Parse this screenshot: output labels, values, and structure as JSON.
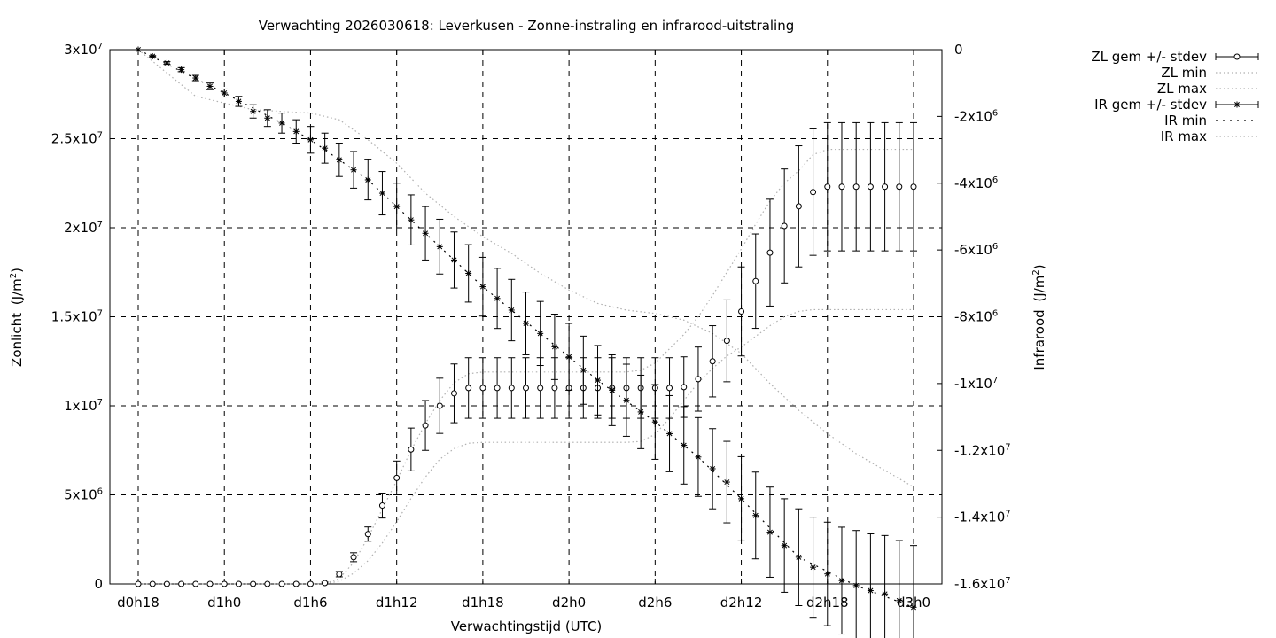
{
  "chart_data": {
    "type": "line",
    "title": "Verwachting 2026030618: Leverkusen - Zonne-instraling en infrarood-uitstraling",
    "xlabel": "Verwachtingstijd (UTC)",
    "ylabel_main": "Zonlicht",
    "ylabel_unit": "(J/m",
    "ylabel_sup": "2",
    "ylabel_close": ")",
    "y2label_main": "Infrarood",
    "y2label_unit": "(J/m",
    "y2label_sup": "2",
    "y2label_close": ")",
    "x_range_hours": [
      24,
      78
    ],
    "x_ticks": [
      {
        "h": 24,
        "label": "d0h18"
      },
      {
        "h": 30,
        "label": "d1h0"
      },
      {
        "h": 36,
        "label": "d1h6"
      },
      {
        "h": 42,
        "label": "d1h12"
      },
      {
        "h": 48,
        "label": "d1h18"
      },
      {
        "h": 54,
        "label": "d2h0"
      },
      {
        "h": 60,
        "label": "d2h6"
      },
      {
        "h": 66,
        "label": "d2h12"
      },
      {
        "h": 72,
        "label": "d2h18"
      },
      {
        "h": 78,
        "label": "d3h0"
      }
    ],
    "ylim": [
      0,
      30000000
    ],
    "y_ticks": [
      {
        "v": 0,
        "base": "0",
        "exp": ""
      },
      {
        "v": 5000000,
        "base": "5x10",
        "exp": "6"
      },
      {
        "v": 10000000,
        "base": "1x10",
        "exp": "7"
      },
      {
        "v": 15000000,
        "base": "1.5x10",
        "exp": "7"
      },
      {
        "v": 20000000,
        "base": "2x10",
        "exp": "7"
      },
      {
        "v": 25000000,
        "base": "2.5x10",
        "exp": "7"
      },
      {
        "v": 30000000,
        "base": "3x10",
        "exp": "7"
      }
    ],
    "y2lim": [
      -16000000,
      0
    ],
    "y2_ticks": [
      {
        "v": 0,
        "base": "0",
        "exp": ""
      },
      {
        "v": -2000000,
        "base": "-2x10",
        "exp": "6"
      },
      {
        "v": -4000000,
        "base": "-4x10",
        "exp": "6"
      },
      {
        "v": -6000000,
        "base": "-6x10",
        "exp": "6"
      },
      {
        "v": -8000000,
        "base": "-8x10",
        "exp": "6"
      },
      {
        "v": -10000000,
        "base": "-1x10",
        "exp": "7"
      },
      {
        "v": -12000000,
        "base": "-1.2x10",
        "exp": "7"
      },
      {
        "v": -14000000,
        "base": "-1.4x10",
        "exp": "7"
      },
      {
        "v": -16000000,
        "base": "-1.6x10",
        "exp": "7"
      }
    ],
    "grid": true,
    "legend_position": "top-right, outside plot",
    "series": [
      {
        "name": "ZL gem +/- stdev",
        "axis": "left",
        "style": "errorbars",
        "marker": "circle",
        "x": [
          24,
          25,
          26,
          27,
          28,
          29,
          30,
          31,
          32,
          33,
          34,
          35,
          36,
          37,
          38,
          39,
          40,
          41,
          42,
          43,
          44,
          45,
          46,
          47,
          48,
          49,
          50,
          51,
          52,
          53,
          54,
          55,
          56,
          57,
          58,
          59,
          60,
          61,
          62,
          63,
          64,
          65,
          66,
          67,
          68,
          69,
          70,
          71,
          72,
          73,
          74,
          75,
          76,
          77,
          78
        ],
        "y": [
          0,
          0,
          0,
          0,
          0,
          0,
          0,
          0,
          0,
          0,
          0,
          0,
          0,
          50000,
          550000,
          1500000,
          2800000,
          4400000,
          5950000,
          7550000,
          8900000,
          10000000,
          10700000,
          11000000,
          11000000,
          11000000,
          11000000,
          11000000,
          11000000,
          11000000,
          11000000,
          11000000,
          11000000,
          11000000,
          11000000,
          11000000,
          11000000,
          11000000,
          11050000,
          11500000,
          12500000,
          13650000,
          15300000,
          17000000,
          18600000,
          20100000,
          21200000,
          22000000,
          22300000,
          22300000,
          22300000,
          22300000,
          22300000,
          22300000,
          22300000
        ],
        "stdev": [
          0,
          0,
          0,
          0,
          0,
          0,
          0,
          0,
          0,
          0,
          0,
          0,
          0,
          50000,
          150000,
          250000,
          400000,
          700000,
          950000,
          1200000,
          1400000,
          1550000,
          1650000,
          1700000,
          1700000,
          1700000,
          1700000,
          1700000,
          1700000,
          1700000,
          1700000,
          1700000,
          1700000,
          1700000,
          1700000,
          1700000,
          1700000,
          1700000,
          1700000,
          1800000,
          2000000,
          2300000,
          2500000,
          2650000,
          3000000,
          3200000,
          3400000,
          3550000,
          3600000,
          3600000,
          3600000,
          3600000,
          3600000,
          3600000,
          3600000
        ]
      },
      {
        "name": "ZL min",
        "axis": "left",
        "style": "dotted-line",
        "color": "#b0b0b0",
        "x": [
          24,
          36,
          37,
          38,
          39,
          40,
          41,
          42,
          43,
          44,
          45,
          46,
          47,
          48,
          52,
          56,
          58,
          59,
          60,
          61,
          62,
          63,
          64,
          65,
          66,
          67,
          68,
          69,
          70,
          71,
          72,
          75,
          78
        ],
        "y": [
          0,
          0,
          20000,
          150000,
          600000,
          1300000,
          2300000,
          3500000,
          4800000,
          6000000,
          7000000,
          7600000,
          7900000,
          7950000,
          7950000,
          7950000,
          7950000,
          8000000,
          8400000,
          9300000,
          10300000,
          11300000,
          12100000,
          12800000,
          13300000,
          13900000,
          14500000,
          15000000,
          15300000,
          15400000,
          15400000,
          15400000,
          15400000
        ]
      },
      {
        "name": "ZL max",
        "axis": "left",
        "style": "dotted-line",
        "color": "#b0b0b0",
        "x": [
          24,
          36,
          37,
          38,
          39,
          40,
          41,
          42,
          43,
          44,
          45,
          46,
          47,
          48,
          52,
          56,
          58,
          59,
          60,
          61,
          62,
          63,
          64,
          65,
          66,
          67,
          68,
          69,
          70,
          71,
          72,
          75,
          78
        ],
        "y": [
          0,
          0,
          20000,
          300000,
          1200000,
          2600000,
          4200000,
          5800000,
          7500000,
          9000000,
          10300000,
          11300000,
          11800000,
          11900000,
          11900000,
          11900000,
          11900000,
          12000000,
          12400000,
          13200000,
          14000000,
          15000000,
          16200000,
          17500000,
          18800000,
          20200000,
          21500000,
          22500000,
          23200000,
          24100000,
          24400000,
          24400000,
          24400000
        ]
      },
      {
        "name": "IR gem +/- stdev",
        "axis": "right",
        "style": "errorbars",
        "marker": "star",
        "x": [
          24,
          25,
          26,
          27,
          28,
          29,
          30,
          31,
          32,
          33,
          34,
          35,
          36,
          37,
          38,
          39,
          40,
          41,
          42,
          43,
          44,
          45,
          46,
          47,
          48,
          49,
          50,
          51,
          52,
          53,
          54,
          55,
          56,
          57,
          58,
          59,
          60,
          61,
          62,
          63,
          64,
          65,
          66,
          67,
          68,
          69,
          70,
          71,
          72,
          73,
          74,
          75,
          76,
          77,
          78
        ],
        "y": [
          0,
          -200000,
          -400000,
          -600000,
          -850000,
          -1100000,
          -1300000,
          -1550000,
          -1850000,
          -2050000,
          -2200000,
          -2450000,
          -2700000,
          -2950000,
          -3300000,
          -3600000,
          -3900000,
          -4300000,
          -4700000,
          -5100000,
          -5500000,
          -5900000,
          -6300000,
          -6700000,
          -7100000,
          -7450000,
          -7800000,
          -8200000,
          -8500000,
          -8900000,
          -9200000,
          -9600000,
          -9900000,
          -10200000,
          -10500000,
          -10850000,
          -11150000,
          -11500000,
          -11850000,
          -12200000,
          -12550000,
          -12950000,
          -13450000,
          -13950000,
          -14450000,
          -14850000,
          -15200000,
          -15500000,
          -15700000,
          -15900000,
          -16050000,
          -16200000,
          -16300000,
          -16500000,
          -16700000
        ],
        "stdev": [
          0,
          20000,
          40000,
          60000,
          80000,
          100000,
          120000,
          150000,
          200000,
          250000,
          300000,
          350000,
          400000,
          450000,
          500000,
          550000,
          600000,
          650000,
          700000,
          750000,
          800000,
          820000,
          840000,
          860000,
          880000,
          900000,
          920000,
          940000,
          960000,
          980000,
          1000000,
          1020000,
          1040000,
          1060000,
          1080000,
          1100000,
          1120000,
          1140000,
          1160000,
          1180000,
          1200000,
          1220000,
          1260000,
          1300000,
          1350000,
          1400000,
          1450000,
          1500000,
          1550000,
          1600000,
          1650000,
          1700000,
          1750000,
          1800000,
          1850000
        ]
      },
      {
        "name": "IR min",
        "axis": "right",
        "style": "dotted-line",
        "color": "#000000",
        "x": [
          24,
          30,
          34,
          36,
          40,
          44,
          48,
          52,
          56,
          60,
          63,
          66,
          70,
          74,
          78
        ],
        "y": [
          0,
          -1300000,
          -2200000,
          -2700000,
          -3900000,
          -5500000,
          -7100000,
          -8500000,
          -9900000,
          -11150000,
          -12200000,
          -13450000,
          -15200000,
          -16050000,
          -16700000
        ]
      },
      {
        "name": "IR max",
        "axis": "right",
        "style": "dotted-line",
        "color": "#b0b0b0",
        "x": [
          24,
          28,
          32,
          36,
          38,
          40,
          42,
          44,
          46,
          48,
          50,
          52,
          54,
          56,
          58,
          60,
          62,
          64,
          66,
          68,
          70,
          72,
          74,
          76,
          78
        ],
        "y": [
          0,
          -1400000,
          -1800000,
          -1900000,
          -2100000,
          -2700000,
          -3400000,
          -4300000,
          -5000000,
          -5600000,
          -6100000,
          -6700000,
          -7200000,
          -7600000,
          -7800000,
          -7900000,
          -8100000,
          -8500000,
          -9100000,
          -10000000,
          -10800000,
          -11500000,
          -12100000,
          -12600000,
          -13100000
        ]
      }
    ]
  }
}
